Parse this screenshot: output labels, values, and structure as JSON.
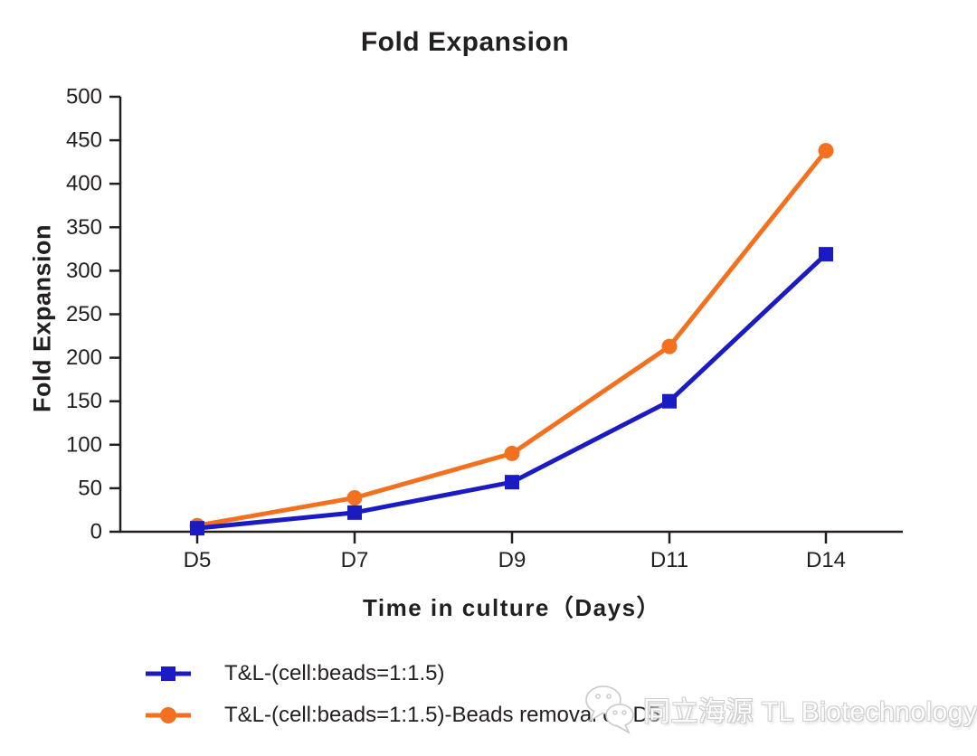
{
  "chart_data": {
    "type": "line",
    "title": "Fold Expansion",
    "xlabel": "Time in culture（Days）",
    "ylabel": "Fold Expansion",
    "categories": [
      "D5",
      "D7",
      "D9",
      "D11",
      "D14"
    ],
    "series": [
      {
        "name": "T&L-(cell:beads=1:1.5)",
        "marker": "square",
        "color": "#1b1bc3",
        "values": [
          4,
          22,
          57,
          150,
          319
        ]
      },
      {
        "name": "T&L-(cell:beads=1:1.5)-Beads removal on D5",
        "marker": "circle",
        "color": "#f3701e",
        "values": [
          7,
          39,
          90,
          213,
          438
        ]
      }
    ],
    "ylim": [
      0,
      500
    ],
    "ytick_step": 50,
    "grid": false,
    "legend_position": "bottom-left",
    "axis_color": "#231f20"
  },
  "watermark": {
    "text": "同立海源 TL Biotechnology",
    "icon": "chat-bubbles-icon"
  }
}
